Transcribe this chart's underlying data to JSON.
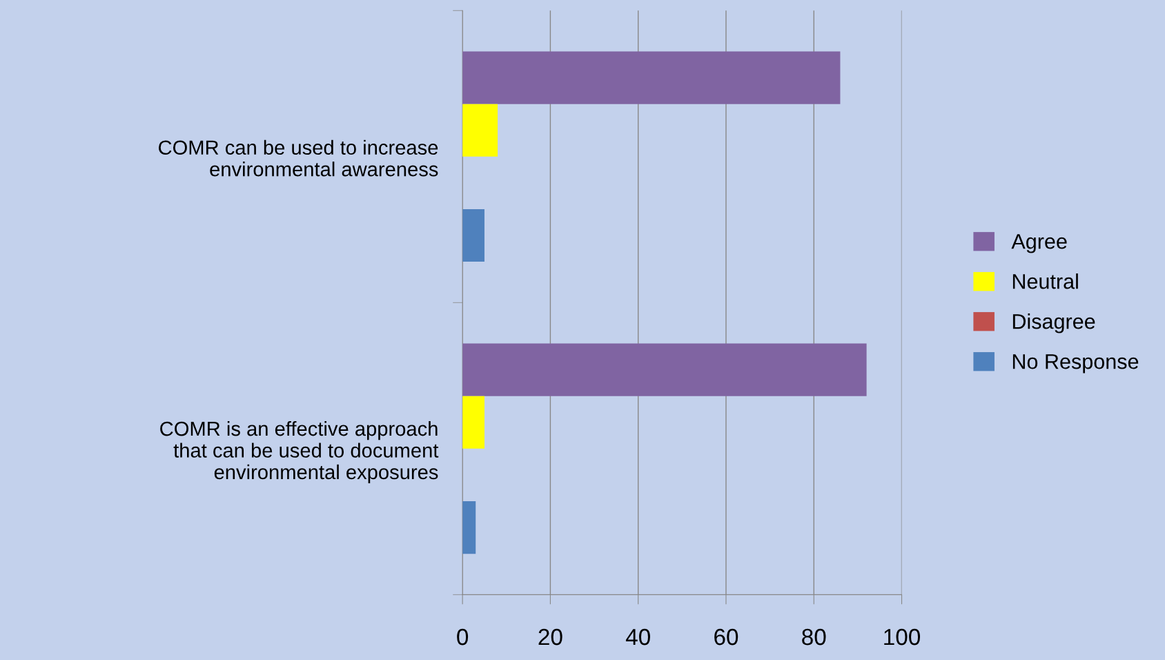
{
  "chart_data": {
    "type": "bar",
    "orientation": "horizontal",
    "categories": [
      "COMR can be used to increase\nenvironmental awareness",
      "COMR is an effective approach\nthat can be used to document\nenvironmental exposures"
    ],
    "series": [
      {
        "name": "Agree",
        "color": "#8064a2",
        "values": [
          86,
          92
        ]
      },
      {
        "name": "Neutral",
        "color": "#ffff00",
        "values": [
          8,
          5
        ]
      },
      {
        "name": "Disagree",
        "color": "#c0504d",
        "values": [
          0,
          0
        ]
      },
      {
        "name": "No Response",
        "color": "#4f81bd",
        "values": [
          5,
          3
        ]
      }
    ],
    "xlim": [
      0,
      100
    ],
    "xticks": [
      0,
      20,
      40,
      60,
      80,
      100
    ],
    "grid": "x",
    "legend": "right"
  }
}
